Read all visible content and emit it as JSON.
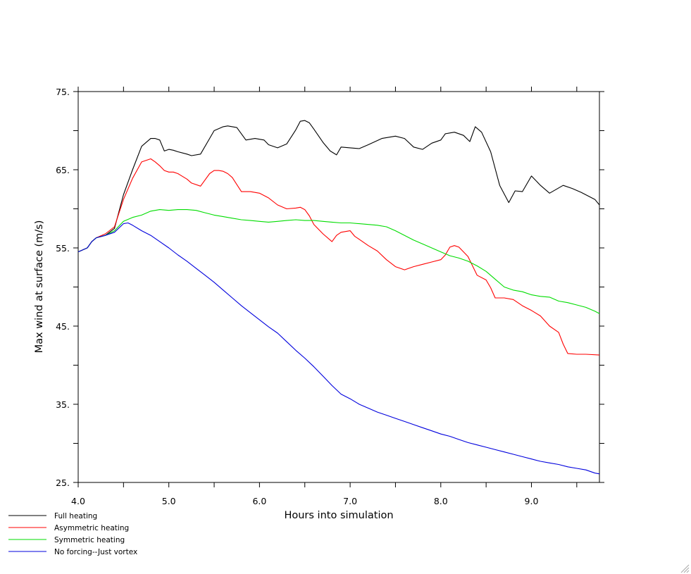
{
  "chart_data": {
    "type": "line",
    "title": "",
    "xlabel": "Hours into simulation",
    "ylabel": "Max wind at surface (m/s)",
    "xlim": [
      4.0,
      9.75
    ],
    "ylim": [
      25,
      75
    ],
    "x_ticks": [
      4.0,
      5.0,
      6.0,
      7.0,
      8.0,
      9.0
    ],
    "x_tick_labels": [
      "4.0",
      "5.0",
      "6.0",
      "7.0",
      "8.0",
      "9.0"
    ],
    "x_minor_ticks": [
      4.5,
      5.5,
      6.5,
      7.5,
      8.5,
      9.5
    ],
    "y_ticks": [
      25,
      35,
      45,
      55,
      65,
      75
    ],
    "y_tick_labels": [
      "25.",
      "35.",
      "45.",
      "55.",
      "65.",
      "75."
    ],
    "y_minor_ticks": [
      30,
      40,
      50,
      60,
      70
    ],
    "grid": false,
    "legend_position": "bottom-left",
    "series": [
      {
        "name": "Full heating",
        "color": "#000000",
        "x": [
          4.0,
          4.1,
          4.15,
          4.2,
          4.3,
          4.4,
          4.5,
          4.6,
          4.7,
          4.8,
          4.85,
          4.9,
          4.95,
          5.0,
          5.05,
          5.1,
          5.2,
          5.25,
          5.35,
          5.45,
          5.5,
          5.6,
          5.65,
          5.7,
          5.75,
          5.85,
          5.95,
          6.05,
          6.1,
          6.2,
          6.3,
          6.4,
          6.45,
          6.5,
          6.55,
          6.6,
          6.7,
          6.78,
          6.85,
          6.9,
          7.0,
          7.1,
          7.2,
          7.35,
          7.5,
          7.6,
          7.7,
          7.8,
          7.9,
          8.0,
          8.05,
          8.15,
          8.25,
          8.32,
          8.38,
          8.45,
          8.55,
          8.65,
          8.75,
          8.82,
          8.9,
          9.0,
          9.1,
          9.2,
          9.35,
          9.45,
          9.55,
          9.7,
          9.75
        ],
        "y": [
          54.5,
          55.0,
          55.8,
          56.3,
          56.6,
          57.5,
          61.8,
          65.0,
          68.0,
          69.0,
          69.0,
          68.8,
          67.4,
          67.6,
          67.5,
          67.3,
          67.0,
          66.8,
          67.0,
          69.0,
          70.0,
          70.5,
          70.6,
          70.5,
          70.4,
          68.8,
          69.0,
          68.8,
          68.2,
          67.8,
          68.3,
          70.1,
          71.2,
          71.3,
          71.0,
          70.2,
          68.5,
          67.4,
          66.9,
          67.9,
          67.8,
          67.7,
          68.2,
          69.0,
          69.3,
          69.0,
          67.9,
          67.6,
          68.4,
          68.8,
          69.6,
          69.8,
          69.4,
          68.6,
          70.5,
          69.8,
          67.3,
          63.0,
          60.8,
          62.3,
          62.2,
          64.2,
          63.0,
          62.0,
          63.0,
          62.6,
          62.1,
          61.2,
          60.5
        ]
      },
      {
        "name": "Asymmetric heating",
        "color": "#ff0000",
        "x": [
          4.0,
          4.1,
          4.15,
          4.2,
          4.3,
          4.4,
          4.5,
          4.6,
          4.7,
          4.8,
          4.85,
          4.9,
          4.95,
          5.0,
          5.05,
          5.1,
          5.2,
          5.25,
          5.35,
          5.45,
          5.5,
          5.55,
          5.6,
          5.65,
          5.7,
          5.8,
          5.9,
          6.0,
          6.1,
          6.2,
          6.3,
          6.4,
          6.45,
          6.5,
          6.55,
          6.6,
          6.7,
          6.8,
          6.85,
          6.9,
          7.0,
          7.05,
          7.1,
          7.2,
          7.3,
          7.4,
          7.5,
          7.6,
          7.7,
          7.8,
          7.9,
          8.0,
          8.05,
          8.1,
          8.15,
          8.2,
          8.3,
          8.4,
          8.5,
          8.55,
          8.6,
          8.7,
          8.8,
          8.9,
          9.0,
          9.1,
          9.2,
          9.3,
          9.35,
          9.4,
          9.5,
          9.6,
          9.75
        ],
        "y": [
          54.5,
          55.0,
          55.8,
          56.3,
          56.8,
          57.7,
          61.2,
          63.9,
          66.0,
          66.4,
          66.0,
          65.5,
          64.9,
          64.7,
          64.7,
          64.5,
          63.8,
          63.3,
          62.9,
          64.5,
          64.9,
          64.9,
          64.8,
          64.5,
          64.0,
          62.2,
          62.2,
          62.0,
          61.4,
          60.5,
          60.0,
          60.1,
          60.2,
          59.9,
          59.1,
          58.0,
          56.8,
          55.8,
          56.6,
          57.0,
          57.2,
          56.5,
          56.1,
          55.3,
          54.6,
          53.5,
          52.6,
          52.2,
          52.6,
          52.9,
          53.2,
          53.5,
          54.1,
          55.1,
          55.3,
          55.1,
          53.9,
          51.5,
          50.9,
          49.9,
          48.6,
          48.6,
          48.4,
          47.6,
          47.0,
          46.3,
          45.0,
          44.2,
          42.7,
          41.5,
          41.4,
          41.4,
          41.3
        ]
      },
      {
        "name": "Symmetric heating",
        "color": "#00dd00",
        "x": [
          4.0,
          4.1,
          4.15,
          4.2,
          4.3,
          4.4,
          4.5,
          4.6,
          4.7,
          4.8,
          4.9,
          5.0,
          5.1,
          5.2,
          5.3,
          5.4,
          5.5,
          5.6,
          5.7,
          5.8,
          5.9,
          6.0,
          6.1,
          6.2,
          6.3,
          6.4,
          6.5,
          6.6,
          6.7,
          6.8,
          6.9,
          7.0,
          7.1,
          7.2,
          7.3,
          7.4,
          7.5,
          7.6,
          7.7,
          7.8,
          7.9,
          8.0,
          8.1,
          8.2,
          8.3,
          8.4,
          8.5,
          8.6,
          8.7,
          8.8,
          8.9,
          9.0,
          9.1,
          9.2,
          9.3,
          9.4,
          9.5,
          9.6,
          9.7,
          9.75
        ],
        "y": [
          54.5,
          55.0,
          55.8,
          56.3,
          56.6,
          57.2,
          58.4,
          58.9,
          59.2,
          59.7,
          59.9,
          59.8,
          59.9,
          59.9,
          59.8,
          59.5,
          59.2,
          59.0,
          58.8,
          58.6,
          58.5,
          58.4,
          58.3,
          58.4,
          58.5,
          58.6,
          58.5,
          58.5,
          58.4,
          58.3,
          58.2,
          58.2,
          58.1,
          58.0,
          57.9,
          57.7,
          57.2,
          56.6,
          56.0,
          55.5,
          55.0,
          54.5,
          54.0,
          53.7,
          53.3,
          52.7,
          52.0,
          51.0,
          50.0,
          49.6,
          49.4,
          49.0,
          48.8,
          48.7,
          48.2,
          48.0,
          47.7,
          47.4,
          46.9,
          46.6
        ]
      },
      {
        "name": "No forcing--Just vortex",
        "color": "#0000dd",
        "x": [
          4.0,
          4.1,
          4.15,
          4.2,
          4.3,
          4.4,
          4.5,
          4.55,
          4.6,
          4.7,
          4.8,
          4.9,
          5.0,
          5.1,
          5.2,
          5.3,
          5.4,
          5.5,
          5.6,
          5.7,
          5.8,
          5.9,
          6.0,
          6.1,
          6.2,
          6.3,
          6.4,
          6.5,
          6.6,
          6.7,
          6.8,
          6.9,
          7.0,
          7.1,
          7.2,
          7.3,
          7.4,
          7.5,
          7.6,
          7.7,
          7.8,
          7.9,
          8.0,
          8.1,
          8.2,
          8.3,
          8.4,
          8.5,
          8.6,
          8.7,
          8.8,
          8.9,
          9.0,
          9.1,
          9.2,
          9.3,
          9.4,
          9.5,
          9.6,
          9.7,
          9.75
        ],
        "y": [
          54.5,
          55.0,
          55.8,
          56.3,
          56.6,
          57.0,
          58.1,
          58.2,
          57.9,
          57.2,
          56.6,
          55.8,
          55.0,
          54.1,
          53.3,
          52.4,
          51.5,
          50.6,
          49.6,
          48.6,
          47.6,
          46.7,
          45.8,
          44.9,
          44.1,
          43.0,
          41.9,
          40.9,
          39.8,
          38.6,
          37.4,
          36.3,
          35.7,
          35.0,
          34.5,
          34.0,
          33.6,
          33.2,
          32.8,
          32.4,
          32.0,
          31.6,
          31.2,
          30.9,
          30.5,
          30.1,
          29.8,
          29.5,
          29.2,
          28.9,
          28.6,
          28.3,
          28.0,
          27.7,
          27.5,
          27.3,
          27.0,
          26.8,
          26.6,
          26.2,
          26.1
        ]
      }
    ]
  }
}
